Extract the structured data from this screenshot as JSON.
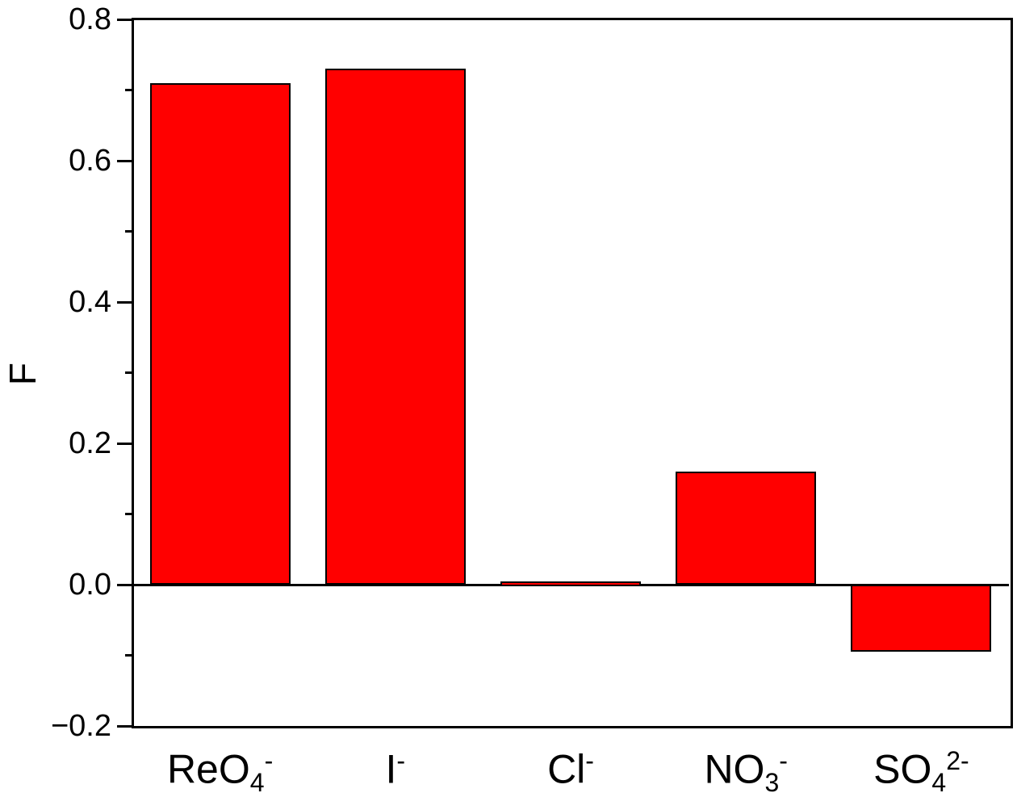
{
  "chart_data": {
    "type": "bar",
    "title": "",
    "xlabel": "",
    "ylabel": "F",
    "ylim": [
      -0.2,
      0.8
    ],
    "grid": false,
    "legend": false,
    "baseline": 0,
    "background": "#ffffff",
    "bar_color": "#ff0000",
    "bar_edge_color": "#000000",
    "axis_color": "#000000",
    "categories": [
      {
        "key": "reo4",
        "label": "ReO4-",
        "parts": [
          {
            "t": "ReO"
          },
          {
            "t": "4",
            "s": "sub"
          },
          {
            "t": "-",
            "s": "sup"
          }
        ]
      },
      {
        "key": "i",
        "label": "I-",
        "parts": [
          {
            "t": "I"
          },
          {
            "t": "-",
            "s": "sup"
          }
        ]
      },
      {
        "key": "cl",
        "label": "Cl-",
        "parts": [
          {
            "t": "Cl"
          },
          {
            "t": "-",
            "s": "sup"
          }
        ]
      },
      {
        "key": "no3",
        "label": "NO3-",
        "parts": [
          {
            "t": "NO"
          },
          {
            "t": "3",
            "s": "sub"
          },
          {
            "t": "-",
            "s": "sup"
          }
        ]
      },
      {
        "key": "so4",
        "label": "SO4 2-",
        "parts": [
          {
            "t": "SO"
          },
          {
            "t": "4",
            "s": "sub"
          },
          {
            "t": "2-",
            "s": "sup"
          }
        ]
      }
    ],
    "values": [
      0.71,
      0.73,
      0.005,
      0.16,
      -0.095
    ],
    "yticks_major": [
      {
        "v": 0.8,
        "label": "0.8"
      },
      {
        "v": 0.6,
        "label": "0.6"
      },
      {
        "v": 0.4,
        "label": "0.4"
      },
      {
        "v": 0.2,
        "label": "0.2"
      },
      {
        "v": 0.0,
        "label": "0.0"
      },
      {
        "v": -0.2,
        "label": "−0.2"
      }
    ],
    "yticks_minor": [
      0.7,
      0.5,
      0.3,
      0.1,
      -0.1
    ]
  }
}
